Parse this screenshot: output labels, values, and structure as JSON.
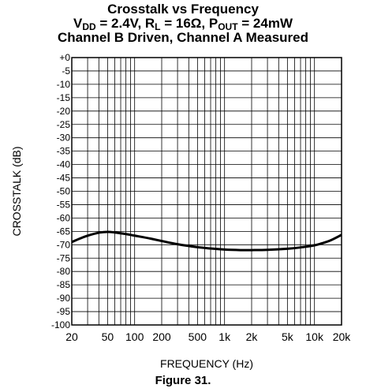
{
  "title": {
    "line1": "Crosstalk vs Frequency",
    "line2": {
      "vdd_sym": "V",
      "vdd_sub": "DD",
      "vdd_val": " = 2.4V, ",
      "rl_sym": "R",
      "rl_sub": "L",
      "rl_val": " = 16Ω, ",
      "pout_sym": "P",
      "pout_sub": "OUT",
      "pout_val": " = 24mW"
    },
    "line3": "Channel B Driven, Channel A Measured"
  },
  "caption": "Figure 31.",
  "chart_data": {
    "type": "line",
    "xlabel": "FREQUENCY (Hz)",
    "ylabel": "CROSSTALK (dB)",
    "xscale": "log",
    "xlim": [
      20,
      20000
    ],
    "ylim": [
      -100,
      0
    ],
    "grid": true,
    "x_ticks": [
      20,
      50,
      100,
      200,
      500,
      1000,
      2000,
      5000,
      10000,
      20000
    ],
    "x_tick_labels": [
      "20",
      "50",
      "100",
      "200",
      "500",
      "1k",
      "2k",
      "5k",
      "10k",
      "20k"
    ],
    "y_ticks": [
      0,
      -5,
      -10,
      -15,
      -20,
      -25,
      -30,
      -35,
      -40,
      -45,
      -50,
      -55,
      -60,
      -65,
      -70,
      -75,
      -80,
      -85,
      -90,
      -95,
      -100
    ],
    "y_tick_labels": [
      "+0",
      "-5",
      "-10",
      "-15",
      "-20",
      "-25",
      "-30",
      "-35",
      "-40",
      "-45",
      "-50",
      "-55",
      "-60",
      "-65",
      "-70",
      "-75",
      "-80",
      "-85",
      "-90",
      "-95",
      "-100"
    ],
    "series": [
      {
        "x": [
          20,
          25,
          30,
          40,
          50,
          60,
          80,
          100,
          150,
          200,
          300,
          500,
          700,
          1000,
          1500,
          2000,
          3000,
          5000,
          7000,
          10000,
          12000,
          15000,
          20000
        ],
        "y": [
          -69,
          -67.6,
          -66.6,
          -65.5,
          -65.2,
          -65.4,
          -66,
          -66.6,
          -67.7,
          -68.6,
          -69.8,
          -70.9,
          -71.4,
          -71.8,
          -72.0,
          -72.0,
          -71.9,
          -71.5,
          -71.0,
          -70.2,
          -69.5,
          -68.4,
          -66.3
        ]
      }
    ]
  }
}
